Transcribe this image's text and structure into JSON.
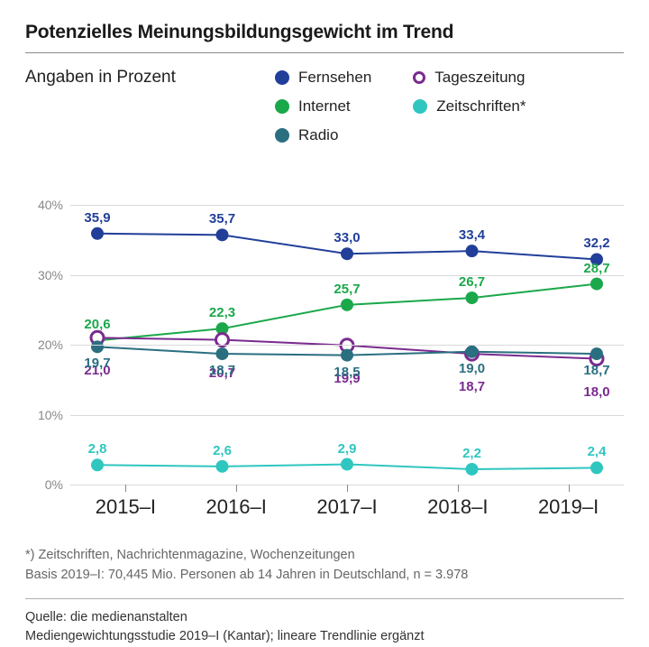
{
  "title": "Potenzielles Meinungsbildungsgewicht im Trend",
  "subtitle": "Angaben in Prozent",
  "chart": {
    "type": "line",
    "categories": [
      "2015–I",
      "2016–I",
      "2017–I",
      "2018–I",
      "2019–I"
    ],
    "ylim": [
      0,
      40
    ],
    "yticks": [
      0,
      10,
      20,
      30,
      40
    ],
    "ytick_labels": [
      "0%",
      "10%",
      "20%",
      "30%",
      "40%"
    ],
    "grid_color": "#d9d9d9",
    "background_color": "#ffffff",
    "axis_label_color": "#888888",
    "label_fontsize": 15,
    "x_fontsize": 22,
    "marker_radius": 7,
    "line_width": 2,
    "series": [
      {
        "name": "Fernsehen",
        "color": "#213f99",
        "marker": "solid",
        "values": [
          35.9,
          35.7,
          33.0,
          33.4,
          32.2
        ],
        "labels": [
          "35,9",
          "35,7",
          "33,0",
          "33,4",
          "32,2"
        ],
        "label_pos": "above",
        "label_offsets_y": [
          0,
          0,
          0,
          0,
          0
        ]
      },
      {
        "name": "Internet",
        "color": "#1aa84a",
        "marker": "solid",
        "values": [
          20.6,
          22.3,
          25.7,
          26.7,
          28.7
        ],
        "labels": [
          "20,6",
          "22,3",
          "25,7",
          "26,7",
          "28,7"
        ],
        "label_pos": "above",
        "label_offsets_y": [
          0,
          0,
          0,
          0,
          0
        ]
      },
      {
        "name": "Tageszeitung",
        "color": "#7a2b8f",
        "marker": "hollow",
        "values": [
          21.0,
          20.7,
          19.9,
          18.7,
          18.0
        ],
        "labels": [
          "21,0",
          "20,7",
          "19,9",
          "18,7",
          "18,0"
        ],
        "label_pos": "below",
        "label_offsets_y": [
          18,
          18,
          18,
          18,
          18
        ]
      },
      {
        "name": "Radio",
        "color": "#2a6f80",
        "marker": "solid",
        "values": [
          19.7,
          18.7,
          18.5,
          19.0,
          18.7
        ],
        "labels": [
          "19,7",
          "18,7",
          "18,5",
          "19,0",
          "18,7"
        ],
        "label_pos": "below",
        "label_offsets_y": [
          0,
          0,
          0,
          0,
          0
        ]
      },
      {
        "name": "Zeitschriften*",
        "color": "#2fc6c0",
        "marker": "solid",
        "values": [
          2.8,
          2.6,
          2.9,
          2.2,
          2.4
        ],
        "labels": [
          "2,8",
          "2,6",
          "2,9",
          "2,2",
          "2,4"
        ],
        "label_pos": "above",
        "label_offsets_y": [
          0,
          0,
          0,
          0,
          0
        ]
      }
    ],
    "legend": [
      {
        "label": "Fernsehen",
        "color": "#213f99",
        "marker": "solid"
      },
      {
        "label": "Tageszeitung",
        "color": "#7a2b8f",
        "marker": "hollow"
      },
      {
        "label": "Internet",
        "color": "#1aa84a",
        "marker": "solid"
      },
      {
        "label": "Zeitschriften*",
        "color": "#2fc6c0",
        "marker": "solid"
      },
      {
        "label": "Radio",
        "color": "#2a6f80",
        "marker": "solid"
      }
    ]
  },
  "footnote_line1": "*) Zeitschriften, Nachrichtenmagazine, Wochenzeitungen",
  "footnote_line2": "Basis 2019–I: 70,445 Mio. Personen ab 14 Jahren in Deutschland, n = 3.978",
  "source_line1": "Quelle: die medienanstalten",
  "source_line2": "Mediengewichtungsstudie 2019–I (Kantar); lineare Trendlinie ergänzt"
}
